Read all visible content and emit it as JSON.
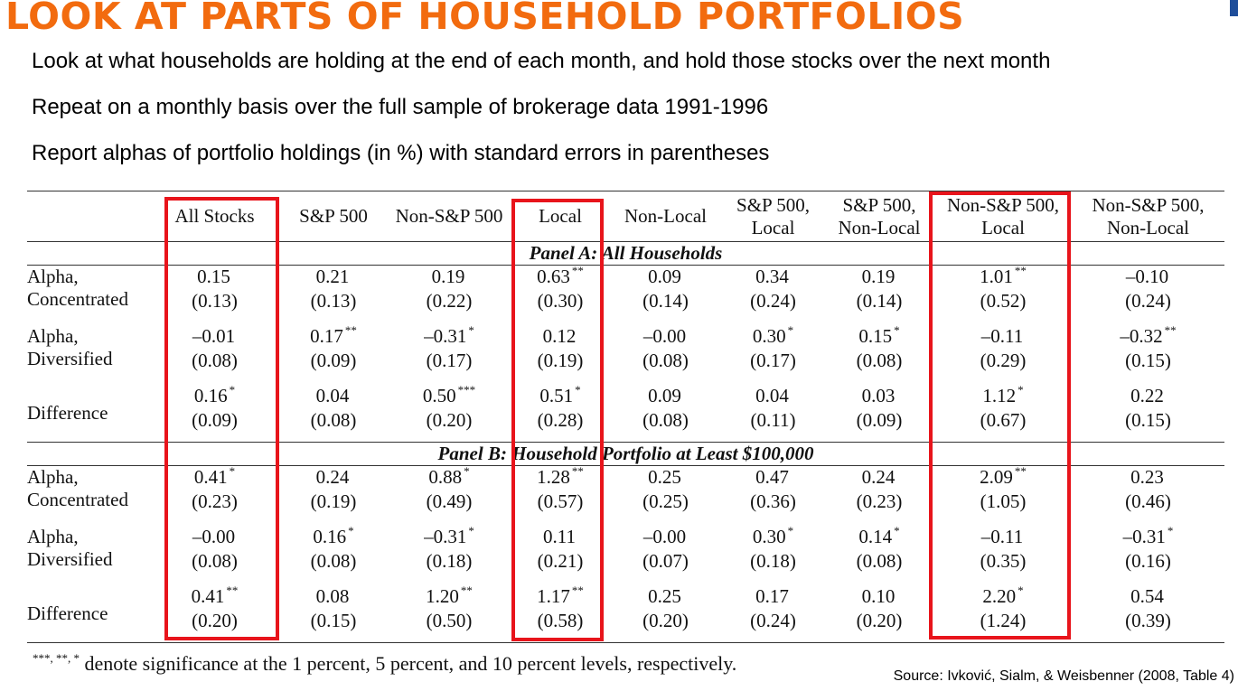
{
  "slide": {
    "title": "LOOK AT PARTS OF HOUSEHOLD PORTFOLIOS",
    "bullets": [
      "Look at what households are holding at the end of each month, and hold those stocks over the next month",
      "Repeat on a monthly basis over the full sample of brokerage data 1991-1996",
      "Report alphas of portfolio holdings (in %) with standard errors in parentheses"
    ],
    "source": "Source: Ivković, Sialm, & Weisbenner (2008, Table 4)"
  },
  "table": {
    "headers": [
      "All Stocks",
      "S&P 500",
      "Non-S&P 500",
      "Local",
      "Non-Local",
      "S&P 500, Local",
      "S&P 500, Non-Local",
      "Non-S&P 500, Local",
      "Non-S&P 500, Non-Local"
    ],
    "panel_a": {
      "title": "Panel A: All Households",
      "rows": [
        {
          "label1": "Alpha,",
          "label2": "Concentrated",
          "cells": [
            {
              "v": "0.15",
              "se": "(0.13)",
              "s": ""
            },
            {
              "v": "0.21",
              "se": "(0.13)",
              "s": ""
            },
            {
              "v": "0.19",
              "se": "(0.22)",
              "s": ""
            },
            {
              "v": "0.63",
              "se": "(0.30)",
              "s": "**"
            },
            {
              "v": "0.09",
              "se": "(0.14)",
              "s": ""
            },
            {
              "v": "0.34",
              "se": "(0.24)",
              "s": ""
            },
            {
              "v": "0.19",
              "se": "(0.14)",
              "s": ""
            },
            {
              "v": "1.01",
              "se": "(0.52)",
              "s": "**"
            },
            {
              "v": "–0.10",
              "se": "(0.24)",
              "s": ""
            }
          ]
        },
        {
          "label1": "Alpha,",
          "label2": "Diversified",
          "cells": [
            {
              "v": "–0.01",
              "se": "(0.08)",
              "s": ""
            },
            {
              "v": "0.17",
              "se": "(0.09)",
              "s": "**"
            },
            {
              "v": "–0.31",
              "se": "(0.17)",
              "s": "*"
            },
            {
              "v": "0.12",
              "se": "(0.19)",
              "s": ""
            },
            {
              "v": "–0.00",
              "se": "(0.08)",
              "s": ""
            },
            {
              "v": "0.30",
              "se": "(0.17)",
              "s": "*"
            },
            {
              "v": "0.15",
              "se": "(0.08)",
              "s": "*"
            },
            {
              "v": "–0.11",
              "se": "(0.29)",
              "s": ""
            },
            {
              "v": "–0.32",
              "se": "(0.15)",
              "s": "**"
            }
          ]
        },
        {
          "label1": "Difference",
          "label2": "",
          "cells": [
            {
              "v": "0.16",
              "se": "(0.09)",
              "s": "*"
            },
            {
              "v": "0.04",
              "se": "(0.08)",
              "s": ""
            },
            {
              "v": "0.50",
              "se": "(0.20)",
              "s": "***"
            },
            {
              "v": "0.51",
              "se": "(0.28)",
              "s": "*"
            },
            {
              "v": "0.09",
              "se": "(0.08)",
              "s": ""
            },
            {
              "v": "0.04",
              "se": "(0.11)",
              "s": ""
            },
            {
              "v": "0.03",
              "se": "(0.09)",
              "s": ""
            },
            {
              "v": "1.12",
              "se": "(0.67)",
              "s": "*"
            },
            {
              "v": "0.22",
              "se": "(0.15)",
              "s": ""
            }
          ]
        }
      ]
    },
    "panel_b": {
      "title": "Panel B: Household Portfolio at Least $100,000",
      "rows": [
        {
          "label1": "Alpha,",
          "label2": "Concentrated",
          "cells": [
            {
              "v": "0.41",
              "se": "(0.23)",
              "s": "*"
            },
            {
              "v": "0.24",
              "se": "(0.19)",
              "s": ""
            },
            {
              "v": "0.88",
              "se": "(0.49)",
              "s": "*"
            },
            {
              "v": "1.28",
              "se": "(0.57)",
              "s": "**"
            },
            {
              "v": "0.25",
              "se": "(0.25)",
              "s": ""
            },
            {
              "v": "0.47",
              "se": "(0.36)",
              "s": ""
            },
            {
              "v": "0.24",
              "se": "(0.23)",
              "s": ""
            },
            {
              "v": "2.09",
              "se": "(1.05)",
              "s": "**"
            },
            {
              "v": "0.23",
              "se": "(0.46)",
              "s": ""
            }
          ]
        },
        {
          "label1": "Alpha,",
          "label2": "Diversified",
          "cells": [
            {
              "v": "–0.00",
              "se": "(0.08)",
              "s": ""
            },
            {
              "v": "0.16",
              "se": "(0.08)",
              "s": "*"
            },
            {
              "v": "–0.31",
              "se": "(0.18)",
              "s": "*"
            },
            {
              "v": "0.11",
              "se": "(0.21)",
              "s": ""
            },
            {
              "v": "–0.00",
              "se": "(0.07)",
              "s": ""
            },
            {
              "v": "0.30",
              "se": "(0.18)",
              "s": "*"
            },
            {
              "v": "0.14",
              "se": "(0.08)",
              "s": "*"
            },
            {
              "v": "–0.11",
              "se": "(0.35)",
              "s": ""
            },
            {
              "v": "–0.31",
              "se": "(0.16)",
              "s": "*"
            }
          ]
        },
        {
          "label1": "Difference",
          "label2": "",
          "cells": [
            {
              "v": "0.41",
              "se": "(0.20)",
              "s": "**"
            },
            {
              "v": "0.08",
              "se": "(0.15)",
              "s": ""
            },
            {
              "v": "1.20",
              "se": "(0.50)",
              "s": "**"
            },
            {
              "v": "1.17",
              "se": "(0.58)",
              "s": "**"
            },
            {
              "v": "0.25",
              "se": "(0.20)",
              "s": ""
            },
            {
              "v": "0.17",
              "se": "(0.24)",
              "s": ""
            },
            {
              "v": "0.10",
              "se": "(0.20)",
              "s": ""
            },
            {
              "v": "2.20",
              "se": "(1.24)",
              "s": "*"
            },
            {
              "v": "0.54",
              "se": "(0.39)",
              "s": ""
            }
          ]
        }
      ]
    },
    "footnote_marks": "***, **, *",
    "footnote_text": "denote significance at the 1 percent, 5 percent, and 10 percent levels, respectively."
  },
  "highlight_color": "#E8141B",
  "title_color": "#F26B0F"
}
